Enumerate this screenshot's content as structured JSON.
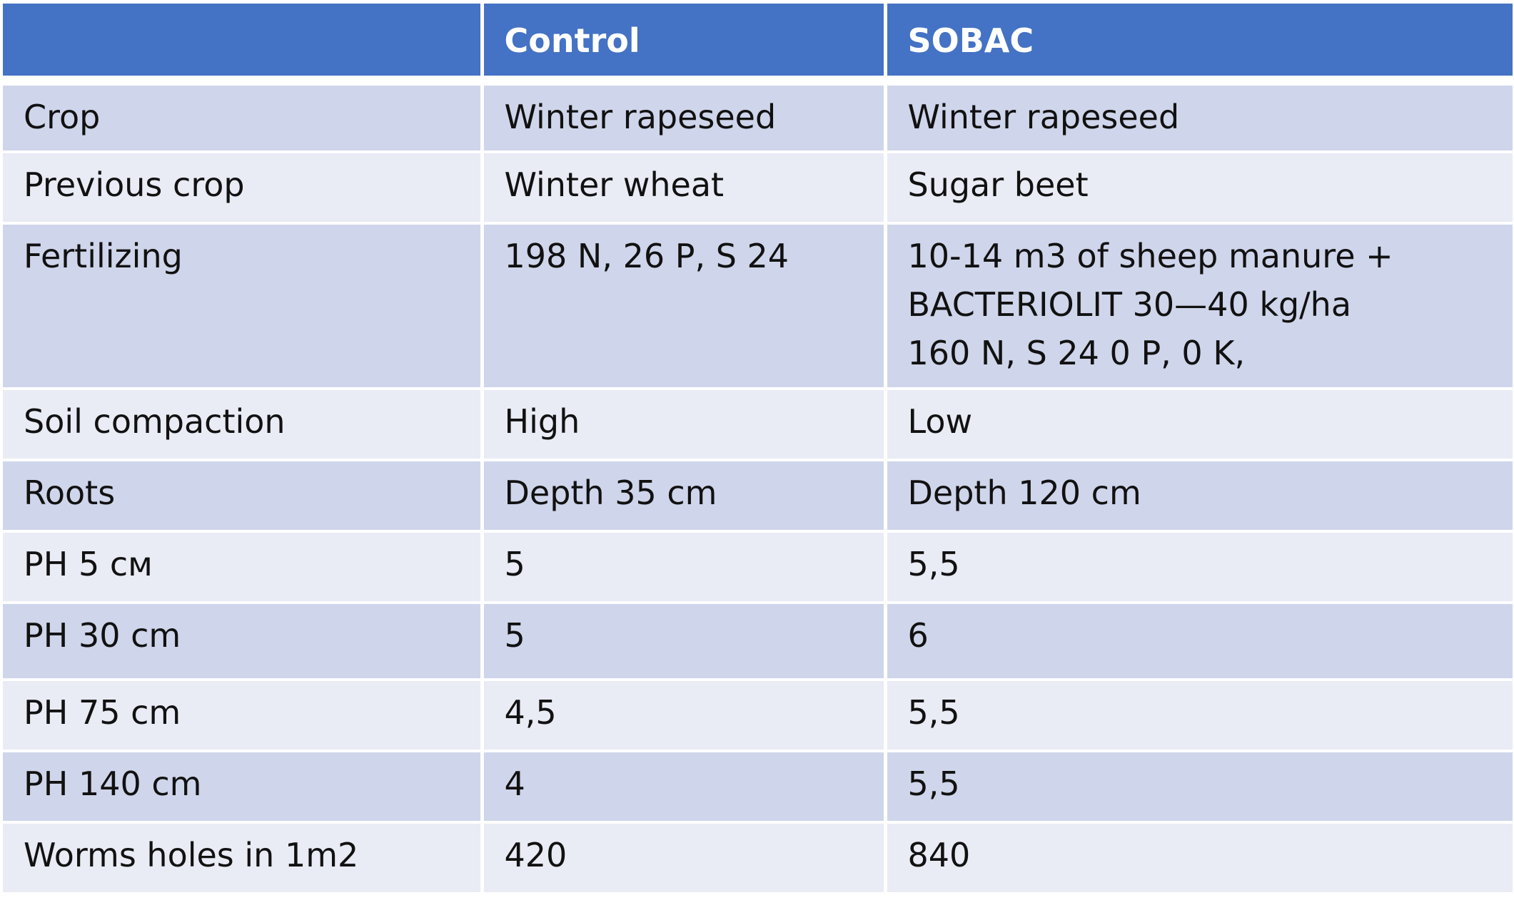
{
  "table": {
    "headers": [
      "",
      "Control",
      "SOBAC"
    ],
    "rows": [
      {
        "label": "Crop",
        "control": "Winter rapeseed",
        "sobac": "Winter rapeseed"
      },
      {
        "label": "Previous crop",
        "control": "Winter wheat",
        "sobac": "Sugar beet"
      },
      {
        "label": "Fertilizing",
        "control": "198 N, 26 P, S 24",
        "sobac": "10-14 m3 of sheep manure +\nBACTERIOLIT 30—40 kg/ha\n160 N, S 24 0 P, 0 K,"
      },
      {
        "label": "Soil compaction",
        "control": "High",
        "sobac": "Low"
      },
      {
        "label": "Roots",
        "control": "Depth  35 cm",
        "sobac": "Depth 120 cm"
      },
      {
        "label": "PH 5 см",
        "control": "5",
        "sobac": "5,5"
      },
      {
        "label": "PH 30 cm",
        "control": "5",
        "sobac": "6"
      },
      {
        "label": "PH 75 cm",
        "control": "4,5",
        "sobac": "5,5"
      },
      {
        "label": "PH 140 cm",
        "control": "4",
        "sobac": "5,5"
      },
      {
        "label": "Worms holes in 1m2",
        "control": "420",
        "sobac": "840"
      }
    ]
  }
}
